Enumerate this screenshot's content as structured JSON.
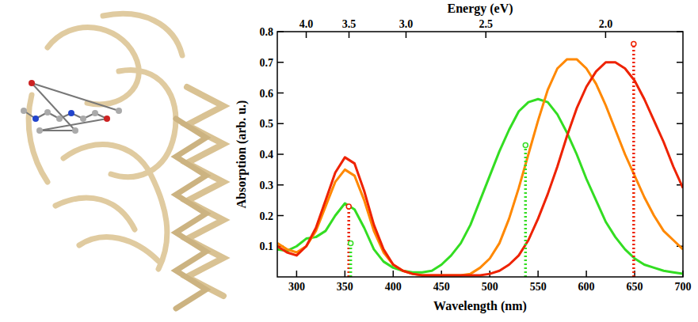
{
  "chart_data": {
    "type": "line",
    "x_title": "Wavelength (nm)",
    "y_title": "Absorption (arb. u.)",
    "x2_title": "Energy (eV)",
    "xlim": [
      280,
      700
    ],
    "xticks": [
      300,
      350,
      400,
      450,
      500,
      550,
      600,
      650,
      700
    ],
    "ylim": [
      0,
      0.8
    ],
    "yticks": [
      0.1,
      0.2,
      0.3,
      0.4,
      0.5,
      0.6,
      0.7,
      0.8
    ],
    "x2ticks": [
      {
        "value": 4,
        "label": "4.0"
      },
      3.5,
      {
        "value": 3,
        "label": "3.0"
      },
      2.5,
      {
        "value": 2,
        "label": "2.0"
      }
    ],
    "grid": false,
    "x": [
      280,
      290,
      300,
      310,
      320,
      330,
      340,
      350,
      360,
      370,
      380,
      390,
      400,
      410,
      420,
      430,
      440,
      450,
      460,
      470,
      480,
      490,
      500,
      510,
      520,
      530,
      540,
      550,
      560,
      570,
      580,
      590,
      600,
      610,
      620,
      630,
      640,
      650,
      660,
      670,
      680,
      690,
      700
    ],
    "series": [
      {
        "color": "#33dd22",
        "values": [
          0.09,
          0.085,
          0.1,
          0.125,
          0.13,
          0.15,
          0.2,
          0.24,
          0.22,
          0.16,
          0.09,
          0.05,
          0.03,
          0.02,
          0.015,
          0.015,
          0.02,
          0.04,
          0.07,
          0.11,
          0.17,
          0.25,
          0.33,
          0.41,
          0.48,
          0.54,
          0.57,
          0.58,
          0.57,
          0.53,
          0.47,
          0.4,
          0.32,
          0.25,
          0.18,
          0.13,
          0.09,
          0.06,
          0.04,
          0.03,
          0.02,
          0.015,
          0.01
        ]
      },
      {
        "color": "#ff8800",
        "values": [
          0.11,
          0.09,
          0.08,
          0.1,
          0.15,
          0.23,
          0.31,
          0.35,
          0.33,
          0.25,
          0.15,
          0.08,
          0.04,
          0.02,
          0.01,
          0.005,
          0.005,
          0.005,
          0.005,
          0.005,
          0.01,
          0.03,
          0.06,
          0.11,
          0.19,
          0.29,
          0.4,
          0.51,
          0.61,
          0.68,
          0.71,
          0.71,
          0.68,
          0.63,
          0.56,
          0.48,
          0.4,
          0.33,
          0.26,
          0.2,
          0.15,
          0.12,
          0.09
        ]
      },
      {
        "color": "#ee2200",
        "values": [
          0.1,
          0.08,
          0.07,
          0.1,
          0.16,
          0.25,
          0.34,
          0.39,
          0.37,
          0.28,
          0.17,
          0.09,
          0.04,
          0.02,
          0.01,
          0.005,
          0.005,
          0.005,
          0.005,
          0.005,
          0.005,
          0.005,
          0.01,
          0.02,
          0.04,
          0.07,
          0.12,
          0.19,
          0.27,
          0.36,
          0.46,
          0.55,
          0.62,
          0.67,
          0.7,
          0.7,
          0.68,
          0.64,
          0.58,
          0.51,
          0.44,
          0.36,
          0.29
        ]
      },
      {
        "type": "stick",
        "line_style": "dotted",
        "marker": "circle",
        "color": "#ee2200",
        "x": [
          354,
          649
        ],
        "values": [
          0.23,
          0.76
        ]
      },
      {
        "type": "stick",
        "line_style": "dotted",
        "marker": "circle",
        "color": "#33dd22",
        "x": [
          356,
          537
        ],
        "values": [
          0.11,
          0.43
        ]
      }
    ]
  }
}
